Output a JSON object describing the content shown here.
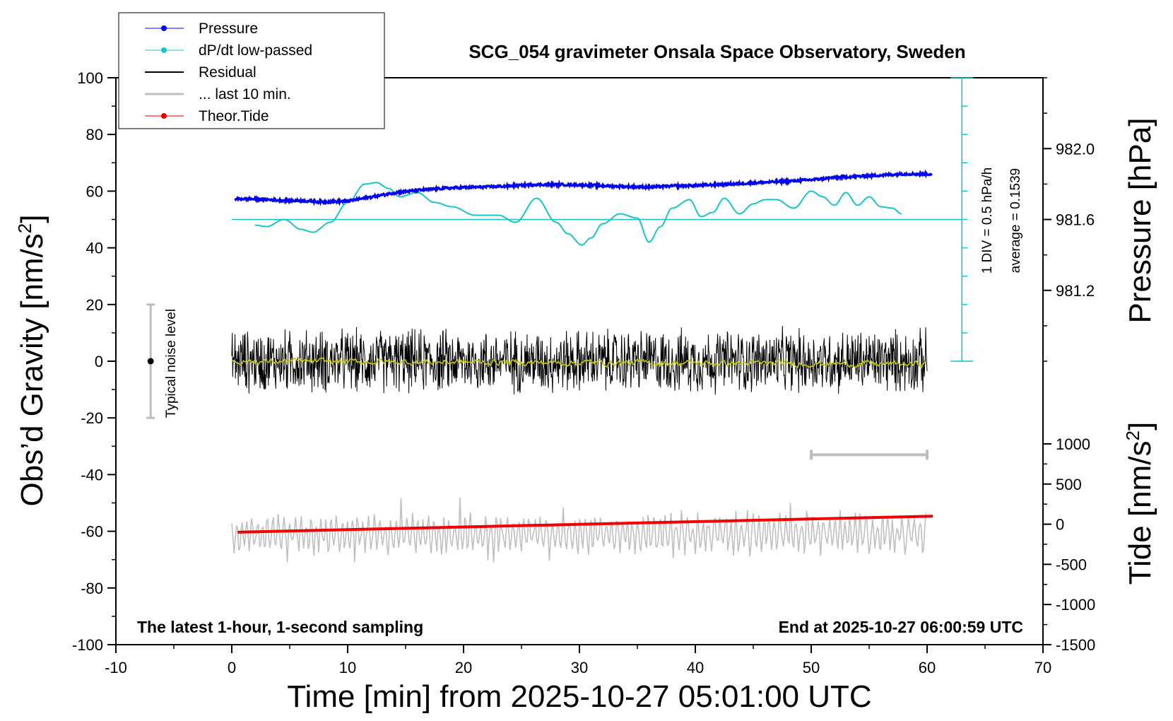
{
  "chart_data": {
    "type": "line",
    "title": "SCG_054 gravimeter Onsala Space Observatory, Sweden",
    "xlabel": "Time [min] from 2025-10-27 05:01:00 UTC",
    "ylabel": "Obs’d Gravity [nm/s",
    "ylabel_sup": "2",
    "ylabel_end": "]",
    "ylabel_right_top": "Pressure [hPa]",
    "ylabel_right_bottom": "Tide [nm/s",
    "ylabel_right_bottom_sup": "2",
    "ylabel_right_bottom_end": "]",
    "xlim": [
      -10,
      70
    ],
    "ylim": [
      -100,
      100
    ],
    "pressure_ylim": [
      980.8,
      982.4
    ],
    "tide_ylim": [
      -1500,
      1500
    ],
    "x_ticks": [
      "-10",
      "0",
      "10",
      "20",
      "30",
      "40",
      "50",
      "60",
      "70"
    ],
    "y_ticks": [
      "100",
      "80",
      "60",
      "40",
      "20",
      "0",
      "-20",
      "-40",
      "-60",
      "-80",
      "-100"
    ],
    "pressure_ticks": [
      "982.0",
      "981.6",
      "981.2"
    ],
    "tide_ticks": [
      "1000",
      "500",
      "0",
      "-500",
      "-1000",
      "-1500"
    ],
    "legend": [
      "Pressure",
      "dP/dt low-passed",
      "Residual",
      "... last 10 min.",
      "Theor.Tide"
    ],
    "legend_placement": "top-left",
    "annotations": {
      "bottom_left": "The latest 1-hour, 1-second sampling",
      "bottom_right": "End at 2025-10-27 06:00:59 UTC",
      "noise": "Typical noise level",
      "div": "1 DIV = 0.5 hPa/h",
      "average": "average = 0.1539"
    },
    "noise_bar": {
      "x": -7,
      "y_center": 0,
      "y_range": [
        -20,
        20
      ]
    },
    "dpdt_zero_line_y": 50,
    "dpdt_scale_axis": {
      "x": 63,
      "y_range": [
        0,
        100
      ]
    },
    "last10_bar": {
      "x_range": [
        50,
        60
      ],
      "y": -33
    },
    "series": [
      {
        "name": "Pressure",
        "color": "#0000ee",
        "x": [
          0.3,
          2,
          4,
          6,
          8,
          10,
          12,
          14,
          16,
          18,
          20,
          22,
          24,
          26,
          28,
          30,
          32,
          34,
          36,
          38,
          40,
          42,
          44,
          46,
          48,
          50,
          52,
          54,
          56,
          58,
          60.4
        ],
        "y": [
          57.3,
          57.2,
          56.8,
          56.6,
          56.2,
          56.5,
          57.9,
          59.4,
          60.3,
          60.9,
          61.3,
          61.5,
          61.8,
          62.3,
          62.3,
          62.2,
          61.9,
          61.6,
          61.4,
          61.8,
          62.0,
          62.3,
          62.7,
          63.1,
          63.5,
          64.0,
          64.8,
          65.2,
          65.6,
          66.1,
          66.0
        ]
      },
      {
        "name": "dP/dt low-passed",
        "color": "#19c4c4",
        "x": [
          2,
          3,
          4.5,
          6,
          7,
          8.5,
          10,
          11.5,
          12.5,
          13.5,
          14.5,
          16,
          17.5,
          19,
          21,
          23,
          24.5,
          26.3,
          28,
          29,
          30.2,
          31,
          32,
          33.5,
          35,
          36,
          37,
          38,
          39.5,
          40.5,
          41.5,
          42.5,
          43.8,
          45,
          46,
          47,
          48.5,
          50,
          51,
          52,
          53,
          54,
          55,
          56,
          57,
          57.8
        ],
        "y": [
          48,
          47.5,
          50,
          46.5,
          45.5,
          49,
          56,
          62.5,
          63,
          61,
          58,
          59.5,
          56,
          54.5,
          51.5,
          51.5,
          49,
          57.5,
          49,
          45,
          41,
          43.5,
          48.5,
          52,
          50.5,
          42,
          47.5,
          54,
          57,
          51,
          52.5,
          57.5,
          52,
          55.5,
          57,
          57,
          54,
          60,
          58,
          55,
          59.5,
          55,
          58,
          54.5,
          54,
          52
        ]
      },
      {
        "name": "Residual",
        "color": "#000000",
        "x": [
          0,
          60
        ],
        "y": [
          0,
          0
        ],
        "note": "1-second residual, oscillating within about ±15 nm/s² around 0"
      },
      {
        "name": "Residual low-passed",
        "color": "#c8c800",
        "x": [
          0,
          60
        ],
        "y": [
          0,
          -1
        ]
      },
      {
        "name": "... last 10 min.",
        "color": "#c0c0c0",
        "x": [
          0,
          60
        ],
        "y": [
          -61,
          -61
        ],
        "note": "last 10 minutes stretched over the hour, oscillating about ±10 nm/s² around -61"
      },
      {
        "name": "Theor.Tide",
        "color": "#ee0000",
        "axis": "tide",
        "x": [
          0.5,
          60.5
        ],
        "y": [
          -100,
          100
        ]
      }
    ]
  }
}
